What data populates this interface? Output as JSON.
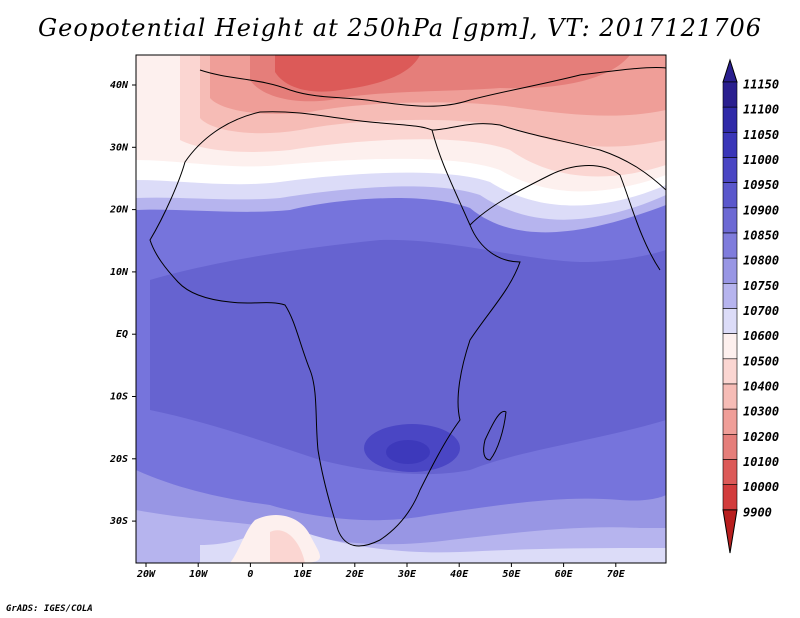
{
  "title": "Geopotential Height at 250hPa [gpm], VT: 2017121706",
  "credit": "GrADS: IGES/COLA",
  "map": {
    "lon_labels": [
      "20W",
      "10W",
      "0",
      "10E",
      "20E",
      "30E",
      "40E",
      "50E",
      "60E",
      "70E"
    ],
    "lat_labels": [
      "40N",
      "30N",
      "20N",
      "10N",
      "EQ",
      "10S",
      "20S",
      "30S"
    ]
  },
  "colorbar": {
    "levels": [
      "11150",
      "11100",
      "11050",
      "11000",
      "10950",
      "10900",
      "10850",
      "10800",
      "10750",
      "10700",
      "10600",
      "10500",
      "10400",
      "10300",
      "10200",
      "10100",
      "10000",
      "9900"
    ],
    "colors": [
      "#2a1f8f",
      "#2f2aa8",
      "#3a36b8",
      "#4a46c4",
      "#5a57cc",
      "#6c69d4",
      "#7f7cdc",
      "#9896e4",
      "#b6b4ee",
      "#dcdcf8",
      "#fdf0ee",
      "#fbd6d2",
      "#f6bcb6",
      "#ef9e98",
      "#e57e7a",
      "#dc5a58",
      "#d23c3c",
      "#b81e1e"
    ]
  }
}
